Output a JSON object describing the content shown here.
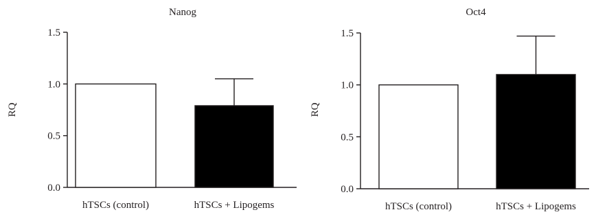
{
  "chart_data": [
    {
      "type": "bar",
      "title": "Nanog",
      "ylabel": "RQ",
      "xlabel": "",
      "ylim": [
        0,
        1.5
      ],
      "yticks": [
        "0.0",
        "0.5",
        "1.0",
        "1.5"
      ],
      "categories": [
        "hTSCs (control)",
        "hTSCs + Lipogems"
      ],
      "values": [
        1.0,
        0.79
      ],
      "error_upper": [
        0,
        0.26
      ],
      "bar_colors": [
        "#ffffff",
        "#000000"
      ]
    },
    {
      "type": "bar",
      "title": "Oct4",
      "ylabel": "RQ",
      "xlabel": "",
      "ylim": [
        0,
        1.5
      ],
      "yticks": [
        "0.0",
        "0.5",
        "1.0",
        "1.5"
      ],
      "categories": [
        "hTSCs (control)",
        "hTSCs + Lipogems"
      ],
      "values": [
        1.0,
        1.1
      ],
      "error_upper": [
        0,
        0.37
      ],
      "bar_colors": [
        "#ffffff",
        "#000000"
      ]
    }
  ]
}
